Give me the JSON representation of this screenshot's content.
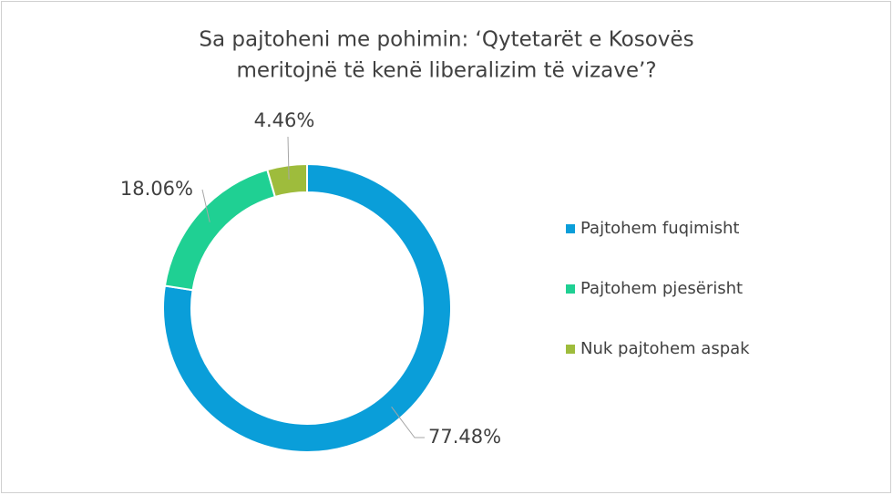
{
  "chart_data": {
    "type": "pie",
    "title": [
      "Sa pajtoheni me pohimin: ‘Qytetarët e Kosovës",
      "meritojnë të kenë liberalizim të vizave’?"
    ],
    "categories": [
      "Pajtohem fuqimisht",
      "Pajtohem pjesërisht",
      "Nuk pajtohem aspak"
    ],
    "values": [
      77.48,
      18.06,
      4.46
    ],
    "value_labels": [
      "77.48%",
      "18.06%",
      "4.46%"
    ],
    "colors": [
      "#0a9ed9",
      "#1fd093",
      "#9ebc3c"
    ],
    "legend": "right"
  }
}
